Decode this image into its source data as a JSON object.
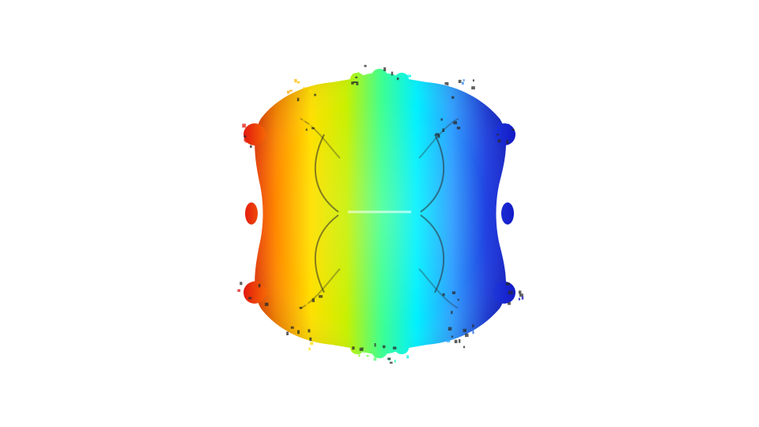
{
  "scene": {
    "subject": "fractal-isosurface",
    "background": "#ffffff",
    "colormap": [
      "#e01010",
      "#ff8a00",
      "#ffe000",
      "#c8f000",
      "#40ff90",
      "#00f0ff",
      "#30a0ff",
      "#2040e0",
      "#1010c0"
    ],
    "shadow_tint": "#2a2a2a"
  }
}
